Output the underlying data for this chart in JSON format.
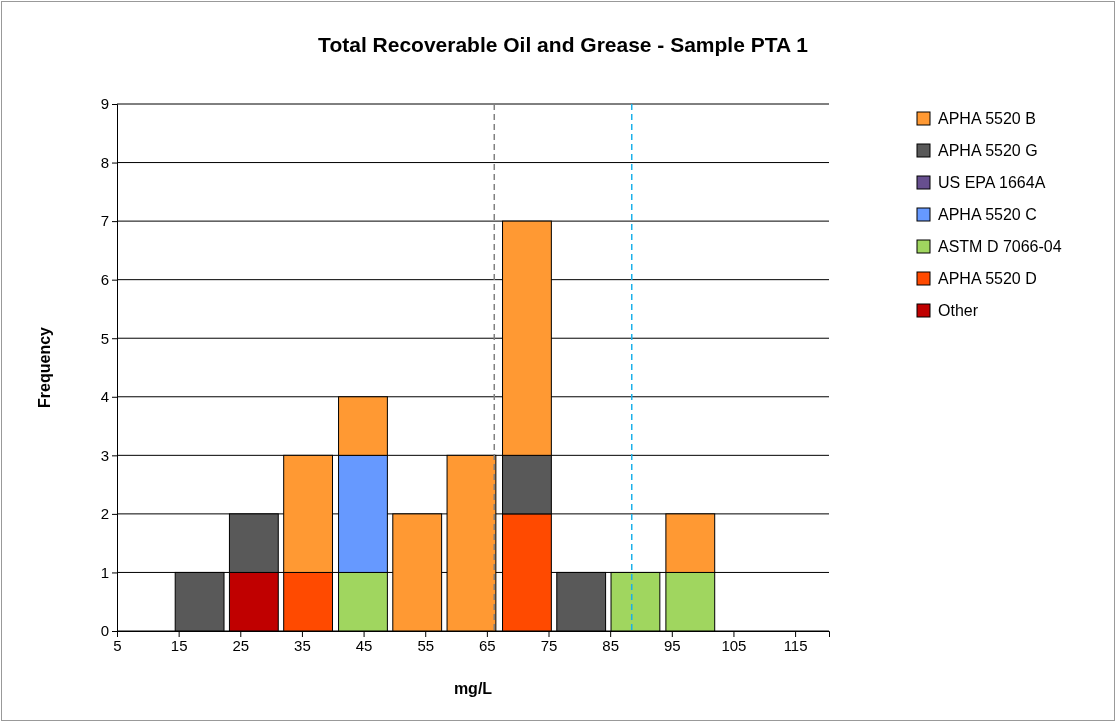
{
  "chart_data": {
    "type": "bar",
    "stacked": true,
    "title": "Total Recoverable Oil and Grease - Sample PTA 1",
    "xlabel": "mg/L",
    "ylabel": "Frequency",
    "x": [
      18.4,
      27.2,
      36.0,
      44.9,
      53.7,
      62.5,
      71.5,
      80.3,
      89.1,
      98.0
    ],
    "series": [
      {
        "name": "Other",
        "color": "#c00000",
        "values": [
          null,
          1,
          null,
          null,
          null,
          null,
          null,
          null,
          null,
          null
        ]
      },
      {
        "name": "APHA 5520 D",
        "color": "#ff4a00",
        "values": [
          null,
          null,
          1,
          null,
          null,
          null,
          2,
          null,
          null,
          null
        ]
      },
      {
        "name": "ASTM D 7066-04",
        "color": "#a0d65f",
        "values": [
          null,
          null,
          null,
          1,
          null,
          null,
          null,
          null,
          1,
          1
        ]
      },
      {
        "name": "APHA 5520 C",
        "color": "#6699ff",
        "values": [
          null,
          null,
          null,
          2,
          null,
          null,
          null,
          null,
          null,
          null
        ]
      },
      {
        "name": "US EPA 1664A",
        "color": "#674f8f",
        "values": [
          null,
          null,
          null,
          null,
          null,
          null,
          null,
          null,
          null,
          null
        ]
      },
      {
        "name": "APHA 5520 G",
        "color": "#595959",
        "values": [
          1,
          1,
          null,
          null,
          null,
          null,
          1,
          1,
          null,
          null
        ]
      },
      {
        "name": "APHA 5520 B",
        "color": "#ff9933",
        "values": [
          null,
          null,
          2,
          1,
          2,
          3,
          4,
          null,
          null,
          1
        ]
      }
    ],
    "xlim": [
      5,
      120.5
    ],
    "xticks": [
      5,
      15,
      25,
      35,
      45,
      55,
      65,
      75,
      85,
      95,
      105,
      115
    ],
    "ylim": [
      0,
      9
    ],
    "yticks": [
      0,
      1,
      2,
      3,
      4,
      5,
      6,
      7,
      8,
      9
    ],
    "grid": "y",
    "legend": "right",
    "ref_lines": [
      {
        "axis": "x",
        "value": 66.2,
        "color": "#808080",
        "line_style": "dashed"
      },
      {
        "axis": "x",
        "value": 88.5,
        "color": "#1ab0e8",
        "line_style": "dashed"
      }
    ]
  }
}
